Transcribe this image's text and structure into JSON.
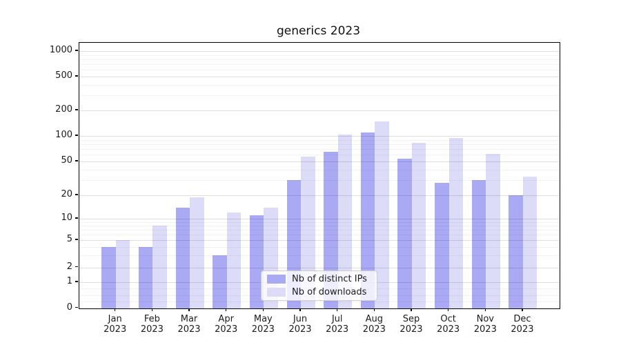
{
  "title": "generics 2023",
  "chart_data": {
    "type": "bar",
    "title": "generics 2023",
    "categories": [
      "Jan 2023",
      "Feb 2023",
      "Mar 2023",
      "Apr 2023",
      "May 2023",
      "Jun 2023",
      "Jul 2023",
      "Aug 2023",
      "Sep 2023",
      "Oct 2023",
      "Nov 2023",
      "Dec 2023"
    ],
    "series": [
      {
        "name": "Nb of distinct IPs",
        "color": "#a9a9f4",
        "values": [
          4,
          4,
          14,
          3,
          11,
          30,
          65,
          110,
          54,
          28,
          30,
          20
        ]
      },
      {
        "name": "Nb of downloads",
        "color": "#dcdcf8",
        "values": [
          5,
          8,
          19,
          12,
          14,
          57,
          104,
          148,
          83,
          94,
          61,
          33
        ]
      }
    ],
    "xlabel": "",
    "ylabel": "",
    "yscale": "asinh-log",
    "ytick_values": [
      0,
      1,
      2,
      5,
      10,
      20,
      50,
      100,
      200,
      500,
      1000
    ],
    "ytick_labels": [
      "0",
      "1",
      "2",
      "5",
      "10",
      "20",
      "50",
      "100",
      "200",
      "500",
      "1000"
    ],
    "ylim": [
      0,
      1270
    ],
    "grid": "on",
    "grid_over_bars": true,
    "legend_position": "lower center"
  }
}
